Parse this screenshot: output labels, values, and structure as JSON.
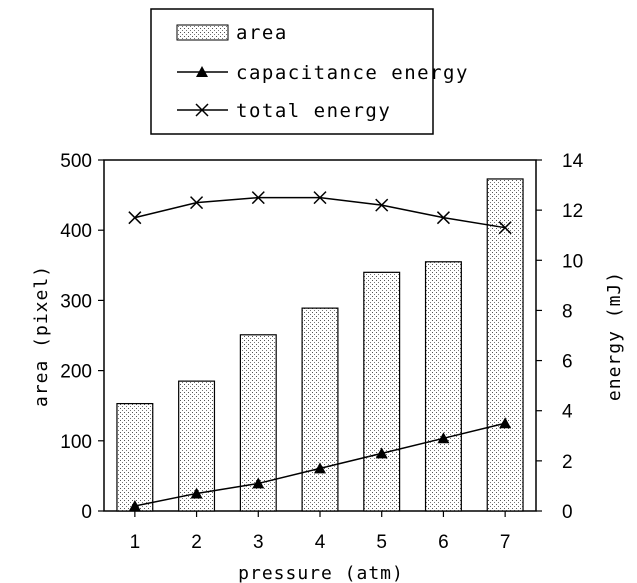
{
  "chart_data": {
    "type": "bar",
    "title": "",
    "xlabel": "pressure (atm)",
    "ylabel_left": "area (pixel)",
    "ylabel_right": "energy (mJ)",
    "categories": [
      "1",
      "2",
      "3",
      "4",
      "5",
      "6",
      "7"
    ],
    "ylim_left": [
      0,
      500
    ],
    "ylim_right": [
      0,
      14
    ],
    "yticks_left": [
      "0",
      "100",
      "200",
      "300",
      "400",
      "500"
    ],
    "yticks_right": [
      "0",
      "2",
      "4",
      "6",
      "8",
      "10",
      "12",
      "14"
    ],
    "grid": false,
    "legend_position": "top (above plot)",
    "series": [
      {
        "name": "area",
        "type": "bar",
        "axis": "left",
        "pattern": "dotted",
        "values": [
          153,
          185,
          251,
          289,
          340,
          355,
          473
        ]
      },
      {
        "name": "capacitance energy",
        "type": "line",
        "axis": "right",
        "marker": "triangle",
        "values": [
          0.2,
          0.7,
          1.1,
          1.7,
          2.3,
          2.9,
          3.5
        ]
      },
      {
        "name": "total energy",
        "type": "line",
        "axis": "right",
        "marker": "x",
        "values": [
          11.7,
          12.3,
          12.5,
          12.5,
          12.2,
          11.7,
          11.3
        ]
      }
    ]
  }
}
